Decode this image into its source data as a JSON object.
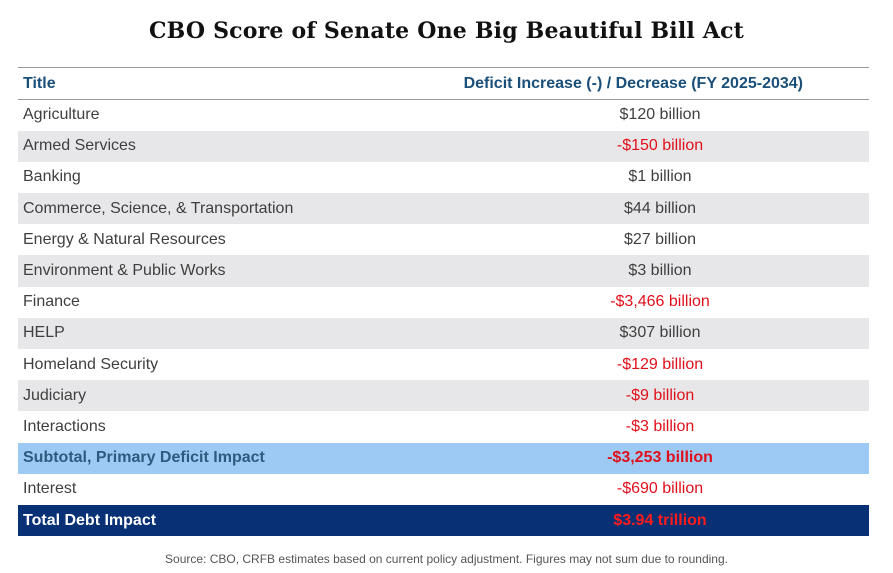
{
  "title": "CBO Score of Senate One Big Beautiful Bill Act",
  "table": {
    "headers": {
      "title": "Title",
      "value": "Deficit Increase (-) / Decrease (FY 2025-2034)"
    },
    "rows": [
      {
        "title": "Agriculture",
        "value": "$120 billion"
      },
      {
        "title": "Armed Services",
        "value": "-$150 billion"
      },
      {
        "title": "Banking",
        "value": "$1 billion"
      },
      {
        "title": "Commerce, Science, & Transportation",
        "value": "$44 billion"
      },
      {
        "title": "Energy & Natural Resources",
        "value": "$27 billion"
      },
      {
        "title": "Environment & Public Works",
        "value": "$3 billion"
      },
      {
        "title": "Finance",
        "value": "-$3,466 billion"
      },
      {
        "title": "HELP",
        "value": "$307 billion"
      },
      {
        "title": "Homeland Security",
        "value": "-$129 billion"
      },
      {
        "title": "Judiciary",
        "value": "-$9 billion"
      },
      {
        "title": "Interactions",
        "value": "-$3 billion"
      }
    ],
    "subtotal": {
      "title": "Subtotal, Primary Deficit Impact",
      "value": "-$3,253 billion"
    },
    "interest": {
      "title": "Interest",
      "value": "-$690 billion"
    },
    "total": {
      "title": "Total Debt Impact",
      "value": "$3.94 trillion"
    }
  },
  "source": "Source: CBO, CRFB estimates based on current policy adjustment. Figures may not sum due to rounding.",
  "colors": {
    "header_text": "#1a4f7a",
    "negative": "#e0101b",
    "subtotal_bg": "#9dcaf4",
    "total_bg": "#073075",
    "stripe_bg": "#e7e7e9"
  }
}
